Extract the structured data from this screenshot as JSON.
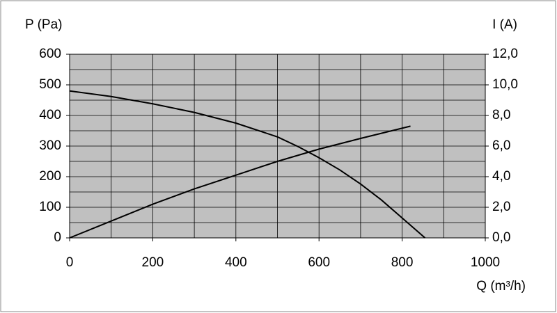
{
  "chart_data": {
    "type": "line",
    "y_label": "P (Pa)",
    "y2_label": "I (A)",
    "x_label": "Q (m³/h)",
    "xlim": [
      0,
      1000
    ],
    "xticks": [
      0,
      200,
      400,
      600,
      800,
      1000
    ],
    "xgrid": [
      0,
      100,
      200,
      300,
      400,
      500,
      600,
      700,
      800,
      900,
      1000
    ],
    "ylim": [
      0,
      600
    ],
    "yticks": [
      0,
      100,
      200,
      300,
      400,
      500,
      600
    ],
    "ygrid": [
      0,
      50,
      100,
      150,
      200,
      250,
      300,
      350,
      400,
      450,
      500,
      550,
      600
    ],
    "y2lim": [
      0,
      12
    ],
    "y2ticks": [
      {
        "value": 0,
        "label": "0,0"
      },
      {
        "value": 2,
        "label": "2,0"
      },
      {
        "value": 4,
        "label": "4,0"
      },
      {
        "value": 6,
        "label": "6,0"
      },
      {
        "value": 8,
        "label": "8,0"
      },
      {
        "value": 10,
        "label": "10,0"
      },
      {
        "value": 12,
        "label": "12,0"
      }
    ],
    "grid": true,
    "plot_background": "#c0c0c0",
    "series": [
      {
        "color": "#000000",
        "axis": "y",
        "x": [
          0,
          100,
          200,
          300,
          400,
          500,
          550,
          600,
          650,
          700,
          750,
          800,
          855
        ],
        "values": [
          480,
          462,
          438,
          410,
          375,
          330,
          298,
          262,
          222,
          176,
          124,
          65,
          0
        ]
      },
      {
        "color": "#000000",
        "axis": "y2",
        "x": [
          0,
          100,
          200,
          300,
          400,
          500,
          600,
          700,
          820
        ],
        "values": [
          0,
          1.1,
          2.2,
          3.2,
          4.1,
          5.0,
          5.8,
          6.5,
          7.3
        ]
      }
    ]
  }
}
